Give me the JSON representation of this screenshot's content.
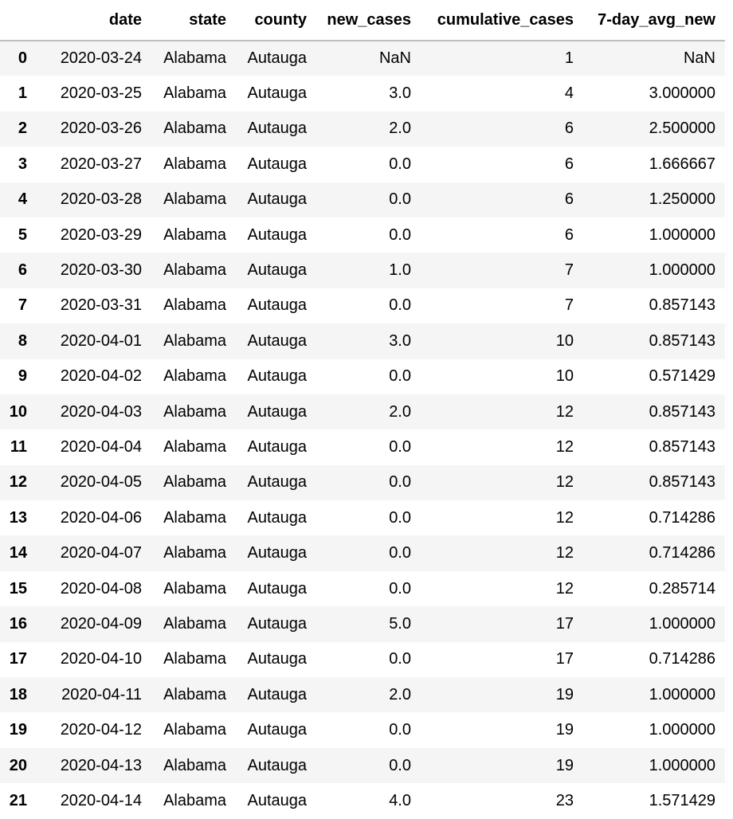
{
  "table": {
    "columns": [
      "",
      "date",
      "state",
      "county",
      "new_cases",
      "cumulative_cases",
      "7-day_avg_new"
    ],
    "rows": [
      [
        "0",
        "2020-03-24",
        "Alabama",
        "Autauga",
        "NaN",
        "1",
        "NaN"
      ],
      [
        "1",
        "2020-03-25",
        "Alabama",
        "Autauga",
        "3.0",
        "4",
        "3.000000"
      ],
      [
        "2",
        "2020-03-26",
        "Alabama",
        "Autauga",
        "2.0",
        "6",
        "2.500000"
      ],
      [
        "3",
        "2020-03-27",
        "Alabama",
        "Autauga",
        "0.0",
        "6",
        "1.666667"
      ],
      [
        "4",
        "2020-03-28",
        "Alabama",
        "Autauga",
        "0.0",
        "6",
        "1.250000"
      ],
      [
        "5",
        "2020-03-29",
        "Alabama",
        "Autauga",
        "0.0",
        "6",
        "1.000000"
      ],
      [
        "6",
        "2020-03-30",
        "Alabama",
        "Autauga",
        "1.0",
        "7",
        "1.000000"
      ],
      [
        "7",
        "2020-03-31",
        "Alabama",
        "Autauga",
        "0.0",
        "7",
        "0.857143"
      ],
      [
        "8",
        "2020-04-01",
        "Alabama",
        "Autauga",
        "3.0",
        "10",
        "0.857143"
      ],
      [
        "9",
        "2020-04-02",
        "Alabama",
        "Autauga",
        "0.0",
        "10",
        "0.571429"
      ],
      [
        "10",
        "2020-04-03",
        "Alabama",
        "Autauga",
        "2.0",
        "12",
        "0.857143"
      ],
      [
        "11",
        "2020-04-04",
        "Alabama",
        "Autauga",
        "0.0",
        "12",
        "0.857143"
      ],
      [
        "12",
        "2020-04-05",
        "Alabama",
        "Autauga",
        "0.0",
        "12",
        "0.857143"
      ],
      [
        "13",
        "2020-04-06",
        "Alabama",
        "Autauga",
        "0.0",
        "12",
        "0.714286"
      ],
      [
        "14",
        "2020-04-07",
        "Alabama",
        "Autauga",
        "0.0",
        "12",
        "0.714286"
      ],
      [
        "15",
        "2020-04-08",
        "Alabama",
        "Autauga",
        "0.0",
        "12",
        "0.285714"
      ],
      [
        "16",
        "2020-04-09",
        "Alabama",
        "Autauga",
        "5.0",
        "17",
        "1.000000"
      ],
      [
        "17",
        "2020-04-10",
        "Alabama",
        "Autauga",
        "0.0",
        "17",
        "0.714286"
      ],
      [
        "18",
        "2020-04-11",
        "Alabama",
        "Autauga",
        "2.0",
        "19",
        "1.000000"
      ],
      [
        "19",
        "2020-04-12",
        "Alabama",
        "Autauga",
        "0.0",
        "19",
        "1.000000"
      ],
      [
        "20",
        "2020-04-13",
        "Alabama",
        "Autauga",
        "0.0",
        "19",
        "1.000000"
      ],
      [
        "21",
        "2020-04-14",
        "Alabama",
        "Autauga",
        "4.0",
        "23",
        "1.571429"
      ]
    ]
  },
  "colors": {
    "stripe": "#f5f5f5",
    "header_rule": "#bdbdbd",
    "text": "#000000"
  }
}
